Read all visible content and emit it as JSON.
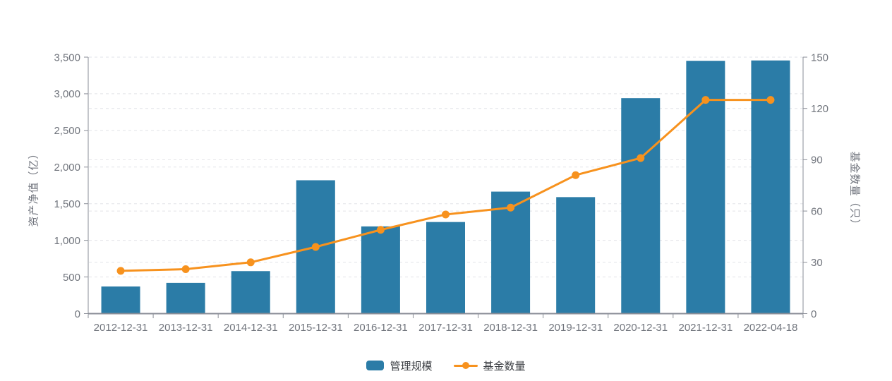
{
  "chart_data": {
    "type": "bar",
    "subtype": "bar-with-line-dual-axis",
    "title": "",
    "categories": [
      "2012-12-31",
      "2013-12-31",
      "2014-12-31",
      "2015-12-31",
      "2016-12-31",
      "2017-12-31",
      "2018-12-31",
      "2019-12-31",
      "2020-12-31",
      "2021-12-31",
      "2022-04-18"
    ],
    "series": [
      {
        "name": "管理规模",
        "type": "bar",
        "axis": "left",
        "color": "#2B7CA7",
        "values": [
          370,
          420,
          580,
          1820,
          1190,
          1250,
          1665,
          1590,
          2940,
          3450,
          3455
        ]
      },
      {
        "name": "基金数量",
        "type": "line",
        "axis": "right",
        "color": "#F7921E",
        "values": [
          25,
          26,
          30,
          39,
          49,
          58,
          62,
          81,
          91,
          125,
          125
        ]
      }
    ],
    "left_axis": {
      "title": "资产净值（亿）",
      "min": 0,
      "max": 3500,
      "step": 500
    },
    "right_axis": {
      "title": "基金数量（只）",
      "min": 0,
      "max": 150,
      "step": 30
    },
    "grid": "horizontal dashed gridlines for both axes' ticks",
    "legend_position": "bottom-center"
  },
  "styles": {
    "bar_color": "#2B7CA7",
    "line_color": "#F7921E",
    "grid_color": "#E2E3E8",
    "axis_line_color": "#8A8E97",
    "tick_label_color": "#71757D",
    "axis_title_color": "#6F737C",
    "legend_text_color": "#3A3D42",
    "background": "#FFFFFF"
  }
}
